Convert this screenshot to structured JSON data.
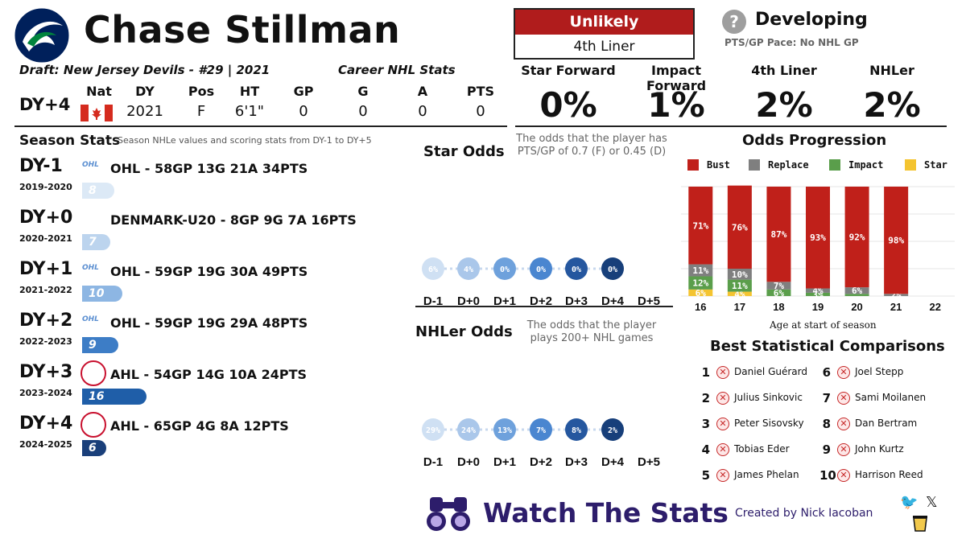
{
  "player": {
    "name": "Chase Stillman",
    "draft_line": "Draft: New Jersey Devils - #29 | 2021",
    "logo": "canucks-orca-logo"
  },
  "career": {
    "title": "Career NHL Stats",
    "current_dy": "DY+4",
    "headers": [
      "Nat",
      "DY",
      "Pos",
      "HT",
      "GP",
      "G",
      "A",
      "PTS"
    ],
    "values": {
      "nat": "canada-flag",
      "dy": "2021",
      "pos": "F",
      "ht": "6'1\"",
      "gp": "0",
      "g": "0",
      "a": "0",
      "pts": "0"
    }
  },
  "projection": {
    "label": "Unlikely",
    "tier": "4th Liner",
    "status": "Developing",
    "status_icon": "question-icon",
    "pace": "PTS/GP Pace:  No NHL GP",
    "colors": {
      "label_bg": "#b01c1c"
    }
  },
  "odds": [
    {
      "label": "Star Forward",
      "value": "0%"
    },
    {
      "label": "Impact Forward",
      "value": "1%"
    },
    {
      "label": "4th Liner",
      "value": "2%"
    },
    {
      "label": "NHLer",
      "value": "2%"
    }
  ],
  "season_stats": {
    "title": "Season Stats",
    "subtitle": "Season NHLe values and scoring stats from DY-1 to DY+5",
    "rows": [
      {
        "dy": "DY-1",
        "years": "2019-2020",
        "league_icon": "ohl-logo",
        "line": "OHL - 58GP 13G 21A 34PTS",
        "nhle": 8
      },
      {
        "dy": "DY+0",
        "years": "2020-2021",
        "league_icon": "",
        "line": "DENMARK-U20 - 8GP 9G 7A 16PTS",
        "nhle": 7
      },
      {
        "dy": "DY+1",
        "years": "2021-2022",
        "league_icon": "ohl-logo",
        "line": "OHL - 59GP 19G 30A 49PTS",
        "nhle": 10
      },
      {
        "dy": "DY+2",
        "years": "2022-2023",
        "league_icon": "ohl-logo",
        "line": "OHL - 59GP 19G 29A 48PTS",
        "nhle": 9
      },
      {
        "dy": "DY+3",
        "years": "2023-2024",
        "league_icon": "ahl-logo",
        "line": "AHL - 54GP 14G 10A 24PTS",
        "nhle": 16
      },
      {
        "dy": "DY+4",
        "years": "2024-2025",
        "league_icon": "ahl-logo",
        "line": "AHL - 65GP 4G 8A 12PTS",
        "nhle": 6
      }
    ],
    "ohl_text": "OHL"
  },
  "star_odds": {
    "title": "Star Odds",
    "description": "The odds that the player has PTS/GP of 0.7 (F) or 0.45 (D)",
    "labels": [
      "D-1",
      "D+0",
      "D+1",
      "D+2",
      "D+3",
      "D+4",
      "D+5"
    ],
    "values": [
      "6%",
      "4%",
      "0%",
      "0%",
      "0%",
      "0%",
      null
    ]
  },
  "nhler_odds": {
    "title": "NHLer Odds",
    "description": "The odds that the player plays 200+ NHL games",
    "labels": [
      "D-1",
      "D+0",
      "D+1",
      "D+2",
      "D+3",
      "D+4",
      "D+5"
    ],
    "values": [
      "29%",
      "24%",
      "13%",
      "7%",
      "8%",
      "2%",
      null
    ]
  },
  "chart_data": {
    "type": "bar",
    "title": "Odds Progression",
    "xlabel": "Age at start of season",
    "ylabel": "",
    "categories": [
      "16",
      "17",
      "18",
      "19",
      "20",
      "21",
      "22"
    ],
    "ylim": [
      0,
      100
    ],
    "legend_position": "top",
    "series": [
      {
        "name": "Star",
        "color": "#f4c430",
        "values": [
          6,
          4,
          0,
          0,
          0,
          0,
          null
        ],
        "labels": [
          "6%",
          "4%",
          "",
          "",
          "",
          "",
          ""
        ]
      },
      {
        "name": "Impact",
        "color": "#5a9e4b",
        "values": [
          12,
          11,
          6,
          3,
          2,
          0,
          null
        ],
        "labels": [
          "12%",
          "11%",
          "6%",
          "3%",
          "",
          "",
          ""
        ]
      },
      {
        "name": "Replace",
        "color": "#7f7f7f",
        "values": [
          11,
          10,
          7,
          4,
          6,
          2,
          null
        ],
        "labels": [
          "11%",
          "10%",
          "7%",
          "4%",
          "6%",
          "2%",
          ""
        ]
      },
      {
        "name": "Bust",
        "color": "#c0201a",
        "values": [
          71,
          76,
          87,
          93,
          92,
          98,
          null
        ],
        "labels": [
          "71%",
          "76%",
          "87%",
          "93%",
          "92%",
          "98%",
          ""
        ]
      }
    ],
    "legend_order": [
      "Bust",
      "Replace",
      "Impact",
      "Star"
    ]
  },
  "comparisons": {
    "title": "Best Statistical Comparisons",
    "items": [
      {
        "n": "1",
        "name": "Daniel Guérard"
      },
      {
        "n": "2",
        "name": "Julius Sinkovic"
      },
      {
        "n": "3",
        "name": "Peter Sisovsky"
      },
      {
        "n": "4",
        "name": "Tobias Eder"
      },
      {
        "n": "5",
        "name": "James Phelan"
      },
      {
        "n": "6",
        "name": "Joel Stepp"
      },
      {
        "n": "7",
        "name": "Sami Moilanen"
      },
      {
        "n": "8",
        "name": "Dan Bertram"
      },
      {
        "n": "9",
        "name": "John Kurtz"
      },
      {
        "n": "10",
        "name": "Harrison Reed"
      }
    ],
    "icon": "x-circle-icon"
  },
  "footer": {
    "brand": "Watch The Stats",
    "credit": "Created by Nick Iacoban",
    "icons": [
      "binoculars-icon",
      "twitter-icon",
      "x-logo-icon",
      "coffee-cup-icon"
    ]
  }
}
